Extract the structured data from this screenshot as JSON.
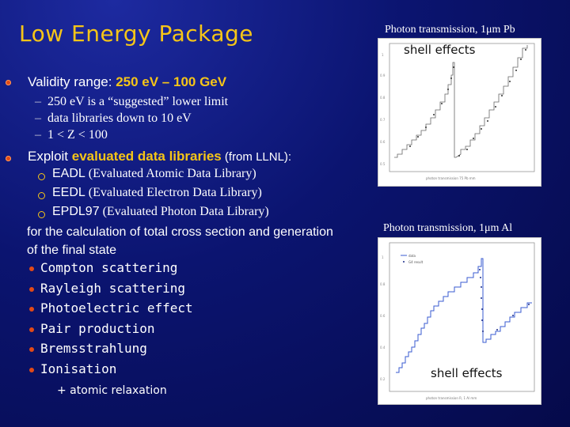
{
  "title": "Low  Energy Package",
  "validity": {
    "prefix": "Validity range: ",
    "range": "250 eV – 100 GeV",
    "items": [
      "250 eV is a “suggested” lower limit",
      "data libraries down to 10 eV",
      "1 < Z < 100"
    ]
  },
  "exploit": {
    "prefix": "Exploit ",
    "highlight": "evaluated data libraries",
    "suffix": " (from LLNL):",
    "libraries": [
      {
        "name": "EADL",
        "desc": " (Evaluated Atomic Data Library)"
      },
      {
        "name": "EEDL",
        "desc": " (Evaluated Electron Data Library)"
      },
      {
        "name": "EPDL97",
        "desc": " (Evaluated Photon Data Library)"
      }
    ],
    "note_line1": "for the calculation of total cross section and generation",
    "note_line2": "of the final state",
    "processes": [
      "Compton scattering",
      "Rayleigh scattering",
      "Photoelectric effect",
      "Pair production",
      "Bremsstrahlung",
      "Ionisation"
    ],
    "extra": "+ atomic relaxation"
  },
  "plots": {
    "pb": {
      "label": "Photon transmission, 1μm Pb",
      "annotation": "shell effects",
      "footer": "photon transmission 75 Pb mm"
    },
    "al": {
      "label": "Photon transmission, 1μm Al",
      "annotation": "shell effects",
      "footer": "photon transmission  R, 1 Al mm",
      "legend": [
        "data",
        "G4 result"
      ]
    }
  }
}
